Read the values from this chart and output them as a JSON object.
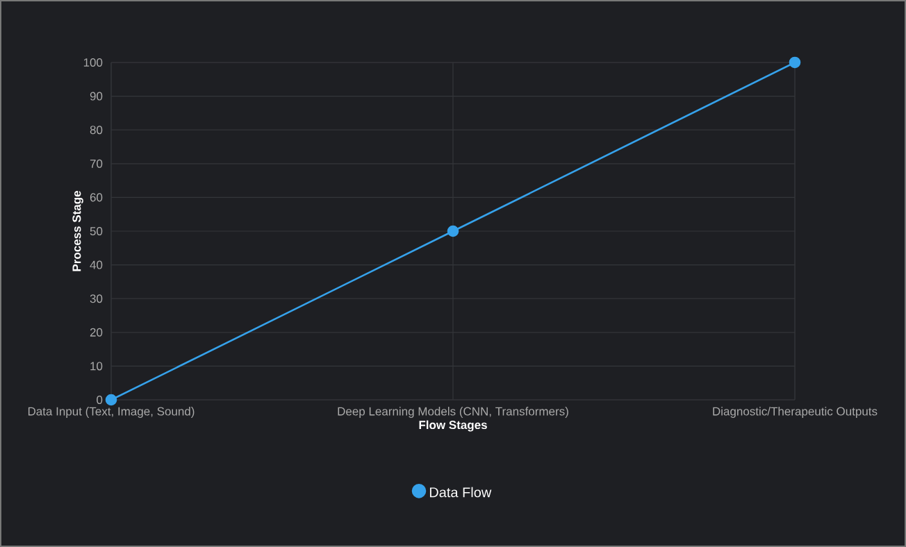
{
  "chart_data": {
    "type": "line",
    "xlabel": "Flow Stages",
    "ylabel": "Process Stage",
    "categories": [
      "Data Input (Text, Image, Sound)",
      "Deep Learning Models (CNN, Transformers)",
      "Diagnostic/Therapeutic Outputs"
    ],
    "series": [
      {
        "name": "Data Flow",
        "color": "#36a2eb",
        "values": [
          0,
          50,
          100
        ]
      }
    ],
    "ylim": [
      0,
      100
    ],
    "yticks": [
      0,
      10,
      20,
      30,
      40,
      50,
      60,
      70,
      80,
      90,
      100
    ],
    "grid": true,
    "legend": "bottom",
    "marker": "circle",
    "line_style": "solid"
  }
}
